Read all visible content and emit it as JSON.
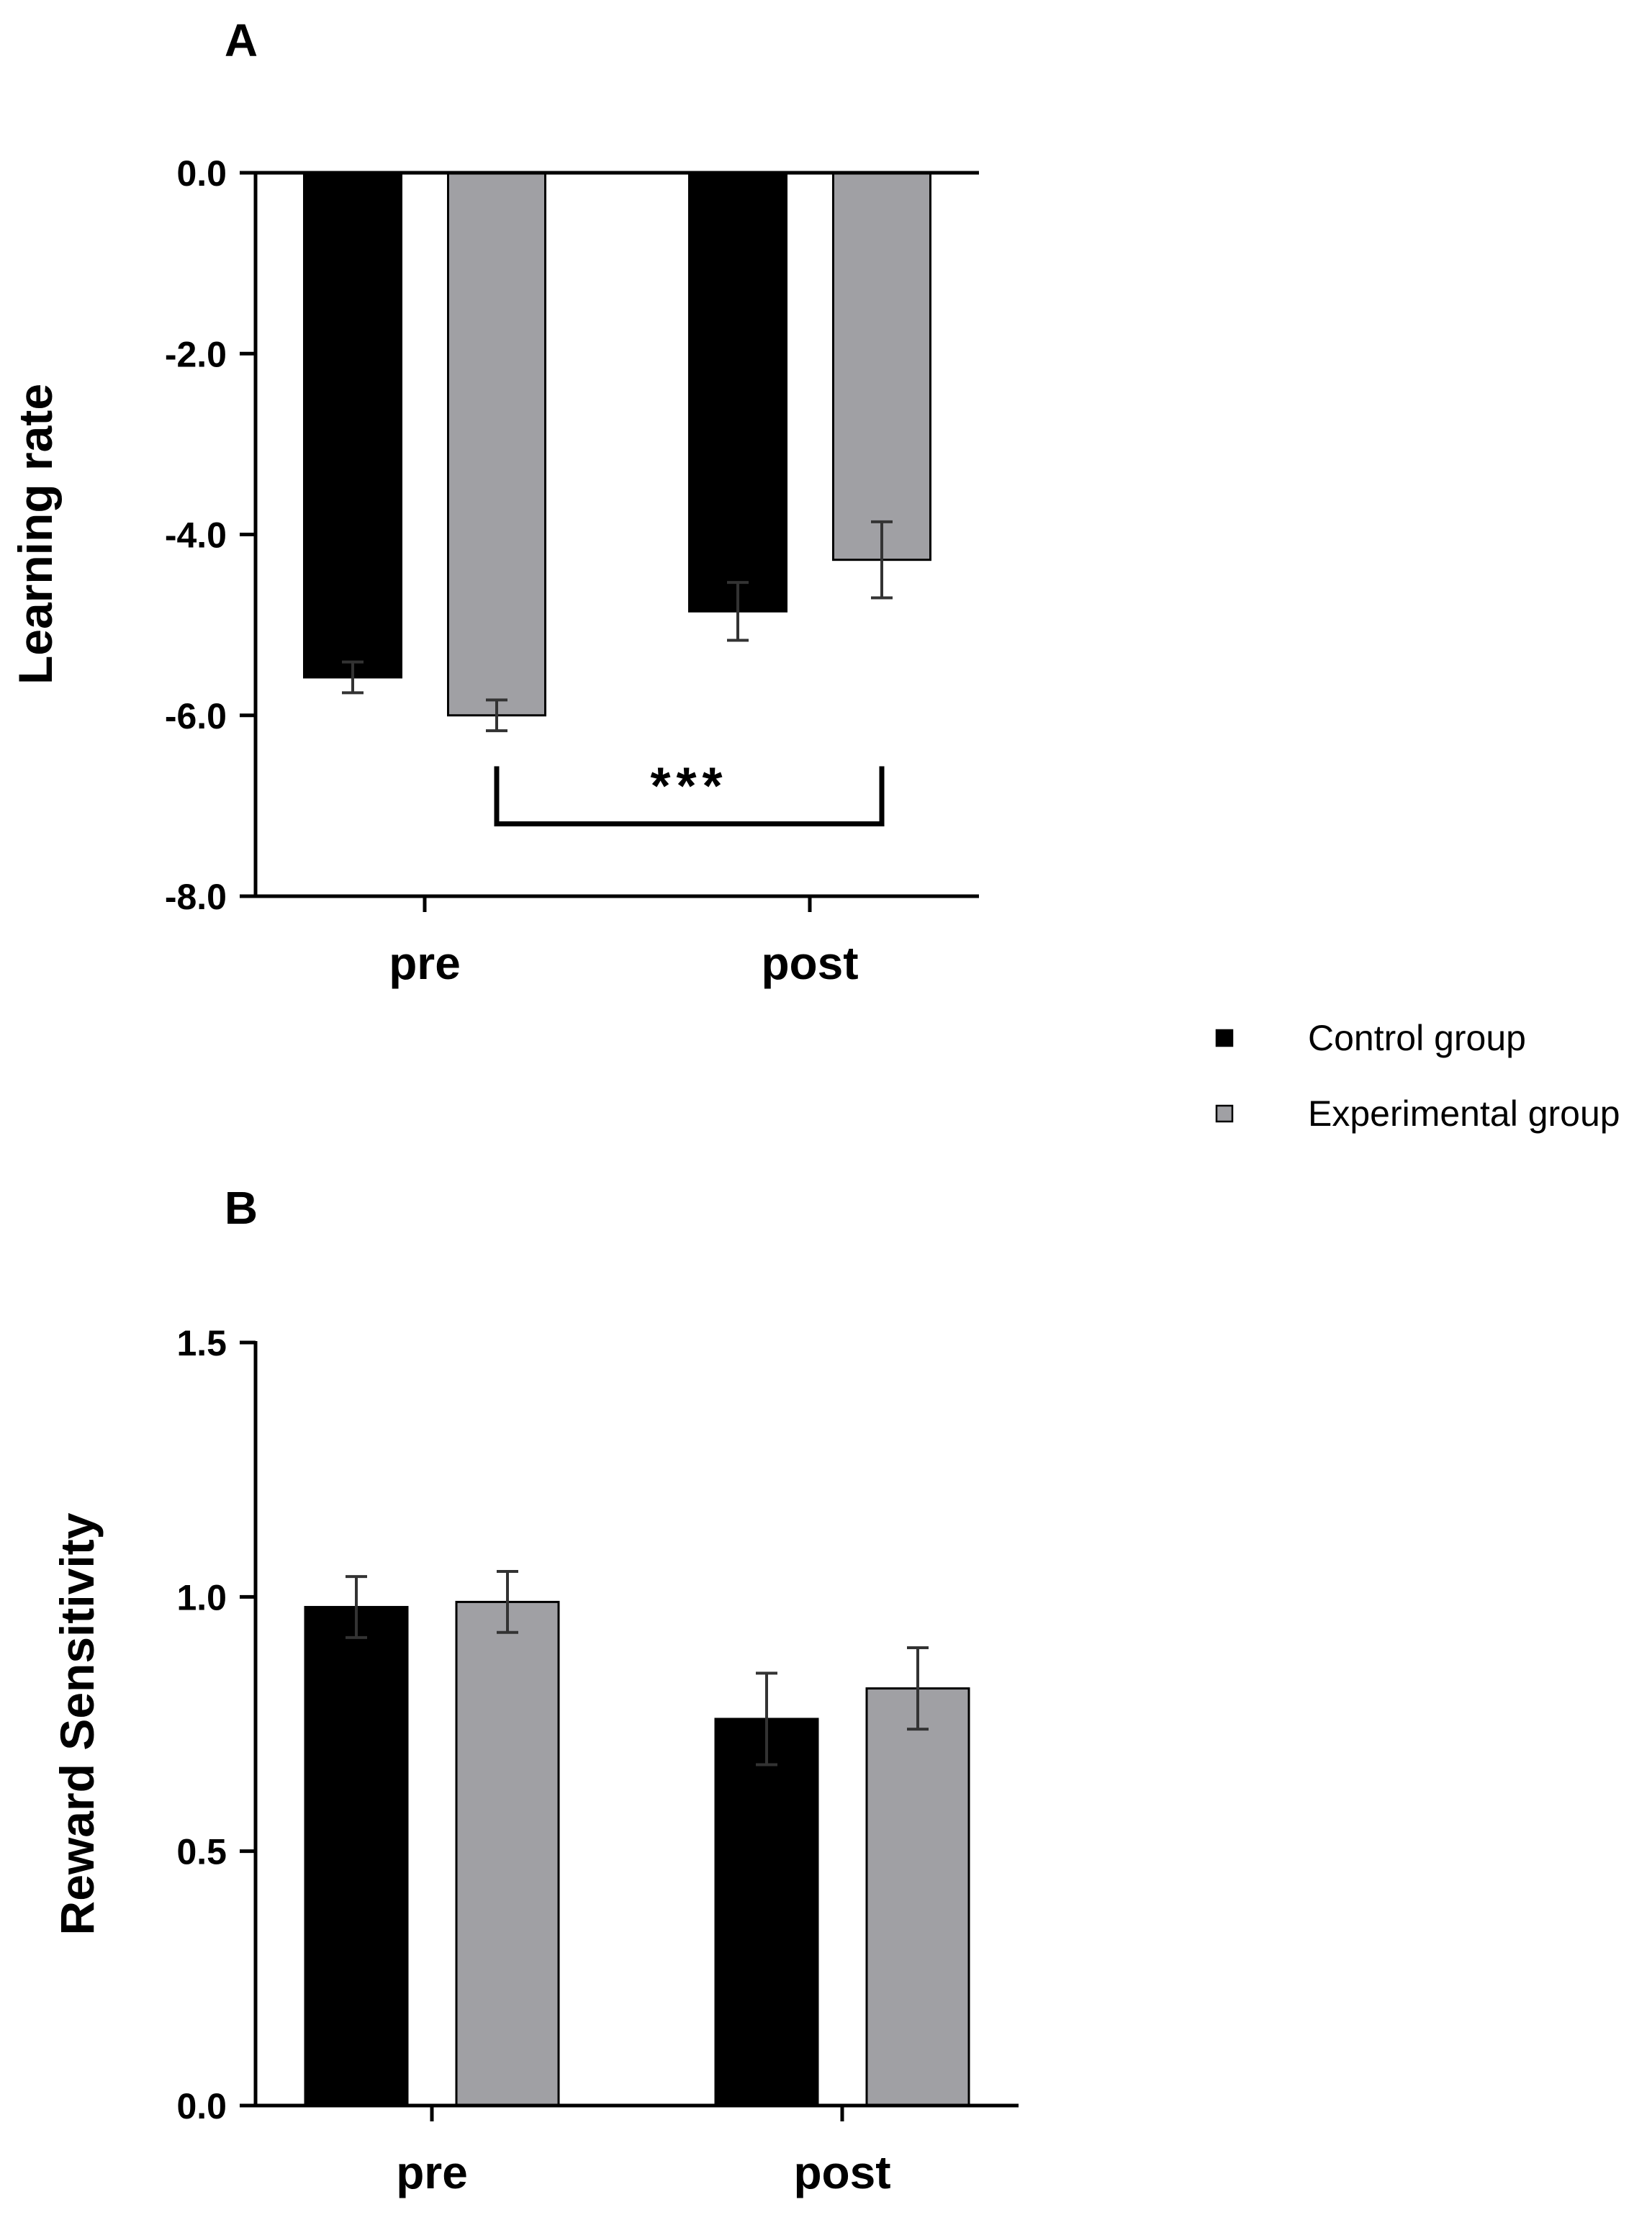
{
  "legend": {
    "items": [
      {
        "label": "Control group",
        "color": "#000000"
      },
      {
        "label": "Experimental group",
        "color": "#a0a0a4"
      }
    ]
  },
  "chart_data": [
    {
      "id": "A",
      "panel_label": "A",
      "type": "bar",
      "ylabel": "Learning rate",
      "xlabel": "",
      "categories": [
        "pre",
        "post"
      ],
      "ylim": [
        -8.0,
        0.0
      ],
      "yticks": [
        0.0,
        -2.0,
        -4.0,
        -6.0,
        -8.0
      ],
      "ytick_labels": [
        "0.0",
        "-2.0",
        "-4.0",
        "-6.0",
        "-8.0"
      ],
      "series": [
        {
          "name": "Control group",
          "color": "#000000",
          "values": [
            -5.58,
            -4.85
          ],
          "errors": [
            0.17,
            0.32
          ]
        },
        {
          "name": "Experimental group",
          "color": "#a0a0a4",
          "values": [
            -6.0,
            -4.28
          ],
          "errors": [
            0.17,
            0.42
          ]
        }
      ],
      "annotations": [
        {
          "text": "***",
          "from": {
            "category": "pre",
            "series": "Experimental group"
          },
          "to": {
            "category": "post",
            "series": "Experimental group"
          },
          "y": -7.2
        }
      ]
    },
    {
      "id": "B",
      "panel_label": "B",
      "type": "bar",
      "ylabel": "Reward Sensitivity",
      "xlabel": "",
      "categories": [
        "pre",
        "post"
      ],
      "ylim": [
        0.0,
        1.5
      ],
      "yticks": [
        0.0,
        0.5,
        1.0,
        1.5
      ],
      "ytick_labels": [
        "0.0",
        "0.5",
        "1.0",
        "1.5"
      ],
      "series": [
        {
          "name": "Control group",
          "color": "#000000",
          "values": [
            0.98,
            0.76
          ],
          "errors": [
            0.06,
            0.09
          ]
        },
        {
          "name": "Experimental group",
          "color": "#a0a0a4",
          "values": [
            0.99,
            0.82
          ],
          "errors": [
            0.06,
            0.08
          ]
        }
      ],
      "annotations": []
    }
  ]
}
